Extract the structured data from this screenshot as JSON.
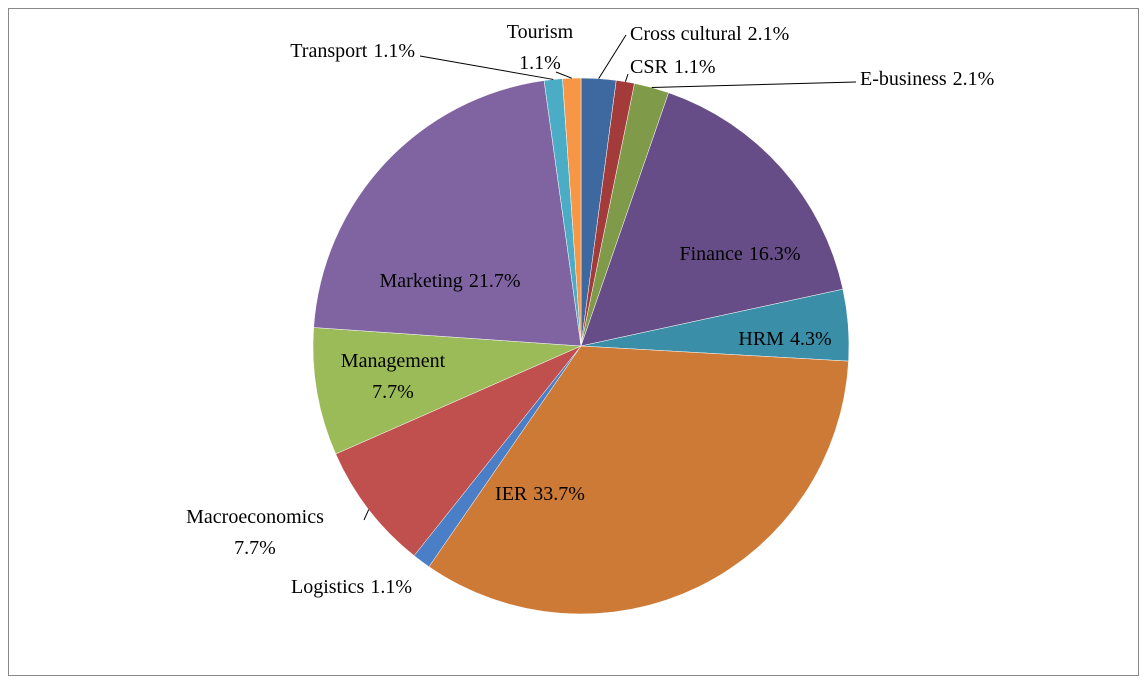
{
  "chart_data": {
    "type": "pie",
    "categories": [
      "Cross cultural",
      "CSR",
      "E-business",
      "Finance",
      "HRM",
      "IER",
      "Logistics",
      "Macroeconomics",
      "Management",
      "Marketing",
      "Transport",
      "Tourism"
    ],
    "values": [
      2.1,
      1.1,
      2.1,
      16.3,
      4.3,
      33.7,
      1.1,
      7.7,
      7.7,
      21.7,
      1.1,
      1.1
    ],
    "value_labels": [
      "2.1%",
      "1.1%",
      "2.1%",
      "16.3%",
      "4.3%",
      "33.7%",
      "1.1%",
      "7.7%",
      "7.7%",
      "21.7%",
      "1.1%",
      "1.1%"
    ],
    "colors": [
      "#3d69a0",
      "#a33b3a",
      "#7f9a48",
      "#664d87",
      "#3a8ea8",
      "#cd7a37",
      "#4a7ec6",
      "#c0504d",
      "#9bbb59",
      "#8064a2",
      "#4bacc6",
      "#f79646"
    ]
  }
}
